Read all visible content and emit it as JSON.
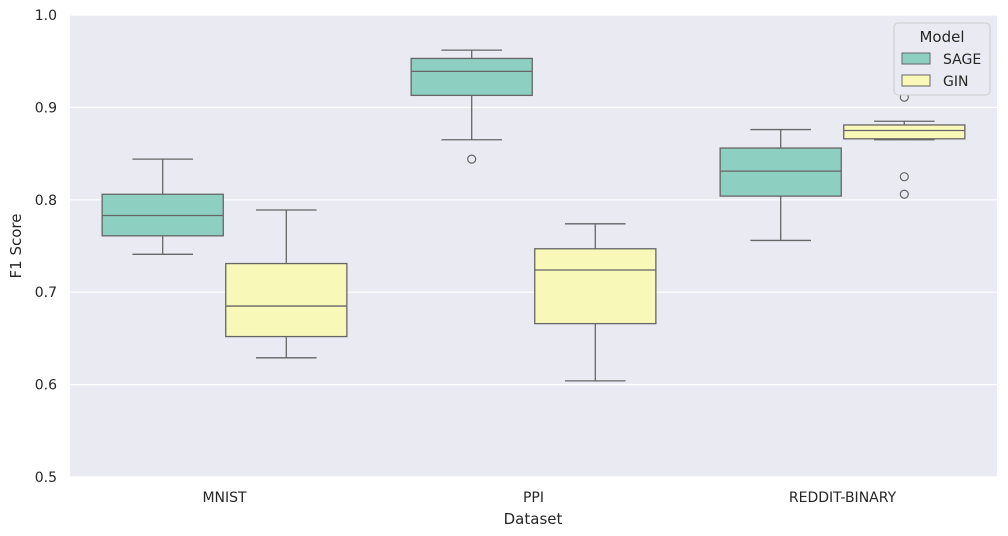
{
  "chart_data": {
    "type": "box",
    "xlabel": "Dataset",
    "ylabel": "F1 Score",
    "ylim": [
      0.5,
      1.0
    ],
    "yticks": [
      "0.5",
      "0.6",
      "0.7",
      "0.8",
      "0.9",
      "1.0"
    ],
    "grid": true,
    "categories": [
      "MNIST",
      "PPI",
      "REDDIT-BINARY"
    ],
    "legend": {
      "title": "Model",
      "placement": "top-right"
    },
    "series": [
      {
        "name": "SAGE",
        "color": "#8dcfc1",
        "boxes": [
          {
            "whisker_low": 0.741,
            "q1": 0.761,
            "median": 0.783,
            "q3": 0.806,
            "whisker_high": 0.844,
            "outliers": []
          },
          {
            "whisker_low": 0.865,
            "q1": 0.913,
            "median": 0.939,
            "q3": 0.953,
            "whisker_high": 0.962,
            "outliers": [
              0.844
            ]
          },
          {
            "whisker_low": 0.756,
            "q1": 0.804,
            "median": 0.831,
            "q3": 0.856,
            "whisker_high": 0.876,
            "outliers": []
          }
        ]
      },
      {
        "name": "GIN",
        "color": "#f8f8b8",
        "boxes": [
          {
            "whisker_low": 0.629,
            "q1": 0.652,
            "median": 0.685,
            "q3": 0.731,
            "whisker_high": 0.789,
            "outliers": []
          },
          {
            "whisker_low": 0.604,
            "q1": 0.666,
            "median": 0.724,
            "q3": 0.747,
            "whisker_high": 0.774,
            "outliers": []
          },
          {
            "whisker_low": 0.865,
            "q1": 0.866,
            "median": 0.875,
            "q3": 0.881,
            "whisker_high": 0.885,
            "outliers": [
              0.911,
              0.825,
              0.806
            ]
          }
        ]
      }
    ]
  }
}
